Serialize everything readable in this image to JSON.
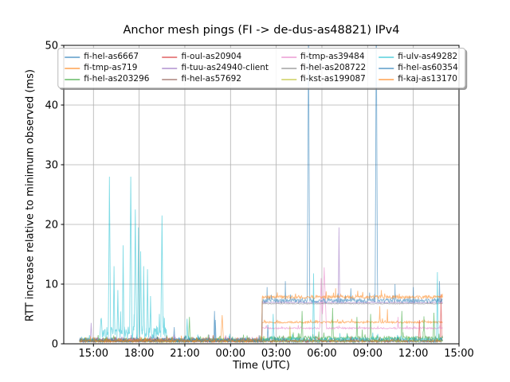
{
  "chart_data": {
    "type": "line",
    "title": "Anchor mesh pings (FI -> de-dus-as48821) IPv4",
    "xlabel": "Time (UTC)",
    "ylabel": "RTT increase relative to minimum observed (ms)",
    "xlim_hours": [
      13.05,
      39.0
    ],
    "ylim": [
      0,
      50
    ],
    "y_ticks": [
      0,
      10,
      20,
      30,
      40,
      50
    ],
    "x_ticks": [
      {
        "hour": 15,
        "label": "15:00"
      },
      {
        "hour": 18,
        "label": "18:00"
      },
      {
        "hour": 21,
        "label": "21:00"
      },
      {
        "hour": 24,
        "label": "00:00"
      },
      {
        "hour": 27,
        "label": "03:00"
      },
      {
        "hour": 30,
        "label": "06:00"
      },
      {
        "hour": 33,
        "label": "09:00"
      },
      {
        "hour": 36,
        "label": "12:00"
      },
      {
        "hour": 39,
        "label": "15:00"
      }
    ],
    "grid": true,
    "grid_color": "#b0b0b0",
    "axis_color": "#000000",
    "line_opacity": 0.55,
    "data_start_hour": 14.08,
    "data_end_hour": 37.95,
    "step_hour": 26.08,
    "legend": {
      "columns": 4,
      "rows": 3,
      "position": "upper center"
    },
    "series": [
      {
        "name": "fi-hel-as6667",
        "color": "#1f77b4",
        "segments": [
          {
            "from": 14.08,
            "to": 37.95,
            "level": 0.4,
            "noise": 0.4
          }
        ],
        "spikes": [
          {
            "t": 20.3,
            "v": 2.8
          },
          {
            "t": 23.0,
            "v": 4.0
          },
          {
            "t": 26.45,
            "v": 3.2
          }
        ]
      },
      {
        "name": "fi-tmp-as719",
        "color": "#ff7f0e",
        "segments": [
          {
            "from": 14.08,
            "to": 26.08,
            "level": 0.5,
            "noise": 0.45
          },
          {
            "from": 26.08,
            "to": 37.95,
            "level": 3.6,
            "noise": 0.3
          }
        ],
        "spikes": [
          {
            "t": 23.45,
            "v": 4.8,
            "w": 0.1
          },
          {
            "t": 33.8,
            "v": 6.3
          },
          {
            "t": 34.3,
            "v": 5.8
          }
        ]
      },
      {
        "name": "fi-hel-as203296",
        "color": "#2ca02c",
        "segments": [
          {
            "from": 14.08,
            "to": 26.08,
            "level": 0.7,
            "noise": 0.5
          },
          {
            "from": 26.08,
            "to": 37.95,
            "level": 0.9,
            "noise": 0.7
          }
        ],
        "spikes": [
          {
            "t": 21.3,
            "v": 4.5
          },
          {
            "t": 28.7,
            "v": 5.5
          },
          {
            "t": 30.7,
            "v": 6.0
          },
          {
            "t": 32.3,
            "v": 4.5
          },
          {
            "t": 33.2,
            "v": 5.0
          },
          {
            "t": 35.25,
            "v": 5.5
          },
          {
            "t": 36.7,
            "v": 4.6
          },
          {
            "t": 37.35,
            "v": 5.2
          }
        ]
      },
      {
        "name": "fi-oul-as20904",
        "color": "#d62728",
        "segments": [
          {
            "from": 14.08,
            "to": 37.95,
            "level": 0.45,
            "noise": 0.35
          }
        ],
        "spikes": [
          {
            "t": 36.4,
            "v": 4.0
          },
          {
            "t": 37.82,
            "v": 8.3
          }
        ]
      },
      {
        "name": "fi-tuu-as24940-client",
        "color": "#9467bd",
        "segments": [
          {
            "from": 14.08,
            "to": 26.08,
            "level": 0.7,
            "noise": 0.5
          },
          {
            "from": 26.08,
            "to": 37.95,
            "level": 6.9,
            "noise": 0.15
          }
        ],
        "spikes": [
          {
            "t": 14.85,
            "v": 3.5
          },
          {
            "t": 31.12,
            "v": 19.5,
            "w": 0.07
          }
        ]
      },
      {
        "name": "fi-hel-as57692",
        "color": "#8c564b",
        "segments": [
          {
            "from": 14.08,
            "to": 37.95,
            "level": 0.5,
            "noise": 0.4
          }
        ],
        "spikes": []
      },
      {
        "name": "fi-tmp-as39484",
        "color": "#e377c2",
        "segments": [
          {
            "from": 14.08,
            "to": 26.08,
            "level": 0.5,
            "noise": 0.4
          },
          {
            "from": 26.08,
            "to": 37.95,
            "level": 2.6,
            "noise": 0.25
          }
        ],
        "spikes": [
          {
            "t": 29.95,
            "v": 11.0,
            "w": 0.12
          },
          {
            "t": 30.15,
            "v": 12.8,
            "w": 0.18
          },
          {
            "t": 35.0,
            "v": 4.5
          }
        ]
      },
      {
        "name": "fi-hel-as208722",
        "color": "#7f7f7f",
        "segments": [
          {
            "from": 14.08,
            "to": 26.08,
            "level": 0.45,
            "noise": 0.35
          },
          {
            "from": 26.08,
            "to": 37.95,
            "level": 6.7,
            "noise": 0.12
          }
        ],
        "spikes": []
      },
      {
        "name": "fi-kst-as199087",
        "color": "#bcbd22",
        "segments": [
          {
            "from": 14.08,
            "to": 37.95,
            "level": 0.45,
            "noise": 0.4
          }
        ],
        "spikes": [
          {
            "t": 27.9,
            "v": 3.0
          }
        ]
      },
      {
        "name": "fi-ulv-as49282",
        "color": "#17becf",
        "segments": [
          {
            "from": 14.08,
            "to": 15.4,
            "level": 0.6,
            "noise": 0.5
          },
          {
            "from": 15.4,
            "to": 19.8,
            "level": 1.8,
            "noise": 2.2
          },
          {
            "from": 19.8,
            "to": 26.08,
            "level": 0.6,
            "noise": 0.5
          },
          {
            "from": 26.08,
            "to": 37.95,
            "level": 0.7,
            "noise": 0.6
          }
        ],
        "spikes": [
          {
            "t": 16.05,
            "v": 28.0,
            "w": 0.08
          },
          {
            "t": 16.35,
            "v": 13.0
          },
          {
            "t": 16.6,
            "v": 9.0
          },
          {
            "t": 16.95,
            "v": 16.5
          },
          {
            "t": 17.45,
            "v": 28.0,
            "w": 0.08
          },
          {
            "t": 17.75,
            "v": 22.5,
            "w": 0.08
          },
          {
            "t": 17.95,
            "v": 19.5
          },
          {
            "t": 18.1,
            "v": 15.5
          },
          {
            "t": 18.3,
            "v": 13.0
          },
          {
            "t": 18.55,
            "v": 12.5
          },
          {
            "t": 18.75,
            "v": 8.0
          },
          {
            "t": 19.5,
            "v": 21.5,
            "w": 0.08
          },
          {
            "t": 21.15,
            "v": 4.2
          },
          {
            "t": 26.8,
            "v": 5.0
          },
          {
            "t": 29.45,
            "v": 11.8
          },
          {
            "t": 37.58,
            "v": 12.0
          }
        ]
      },
      {
        "name": "fi-hel-as60354",
        "color": "#1f77b4",
        "segments": [
          {
            "from": 14.08,
            "to": 26.08,
            "level": 0.5,
            "noise": 0.4
          },
          {
            "from": 26.08,
            "to": 37.95,
            "level": 7.2,
            "noise": 0.7
          }
        ],
        "spikes": [
          {
            "t": 22.95,
            "v": 5.5
          },
          {
            "t": 26.4,
            "v": 9.5
          },
          {
            "t": 27.6,
            "v": 10.5
          },
          {
            "t": 29.12,
            "v": 55.0,
            "w": 0.09
          },
          {
            "t": 31.9,
            "v": 9.3
          },
          {
            "t": 33.57,
            "v": 55.0,
            "w": 0.09
          },
          {
            "t": 34.8,
            "v": 10.0
          },
          {
            "t": 36.0,
            "v": 9.5
          },
          {
            "t": 37.72,
            "v": 10.5
          }
        ]
      },
      {
        "name": "fi-kaj-as13170",
        "color": "#ff7f0e",
        "segments": [
          {
            "from": 14.08,
            "to": 26.08,
            "level": 0.5,
            "noise": 0.45
          },
          {
            "from": 26.08,
            "to": 37.95,
            "level": 7.8,
            "noise": 0.55
          }
        ],
        "spikes": [
          {
            "t": 30.9,
            "v": 9.3
          },
          {
            "t": 33.9,
            "v": 9.0
          }
        ]
      }
    ]
  }
}
